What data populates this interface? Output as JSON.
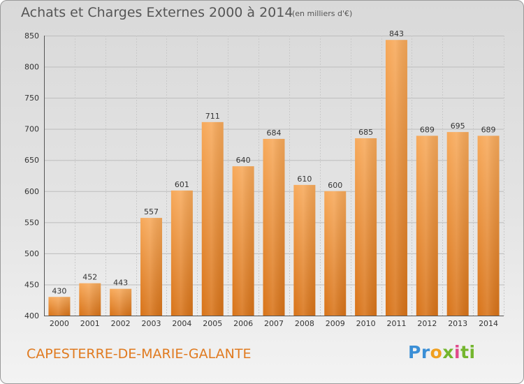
{
  "header": {
    "title": "Achats et Charges Externes 2000 à 2014",
    "unit": "(en milliers d'€)"
  },
  "footer": {
    "location": "CAPESTERRE-DE-MARIE-GALANTE",
    "logo": [
      "Pr",
      "o",
      "x",
      "i",
      "ti"
    ]
  },
  "colors": {
    "bar_light": "#f7a95a",
    "bar_dark": "#d87318",
    "location_text": "#e07a1f"
  },
  "chart_data": {
    "type": "bar",
    "title": "Achats et Charges Externes 2000 à 2014",
    "subtitle": "(en milliers d'€)",
    "xlabel": "",
    "ylabel": "",
    "categories": [
      "2000",
      "2001",
      "2002",
      "2003",
      "2004",
      "2005",
      "2006",
      "2007",
      "2008",
      "2009",
      "2010",
      "2011",
      "2012",
      "2013",
      "2014"
    ],
    "values": [
      430,
      452,
      443,
      557,
      601,
      711,
      640,
      684,
      610,
      600,
      685,
      843,
      689,
      695,
      689
    ],
    "ylim": [
      400,
      850
    ],
    "yticks": [
      400,
      450,
      500,
      550,
      600,
      650,
      700,
      750,
      800,
      850
    ],
    "grid": true,
    "legend": "none"
  }
}
